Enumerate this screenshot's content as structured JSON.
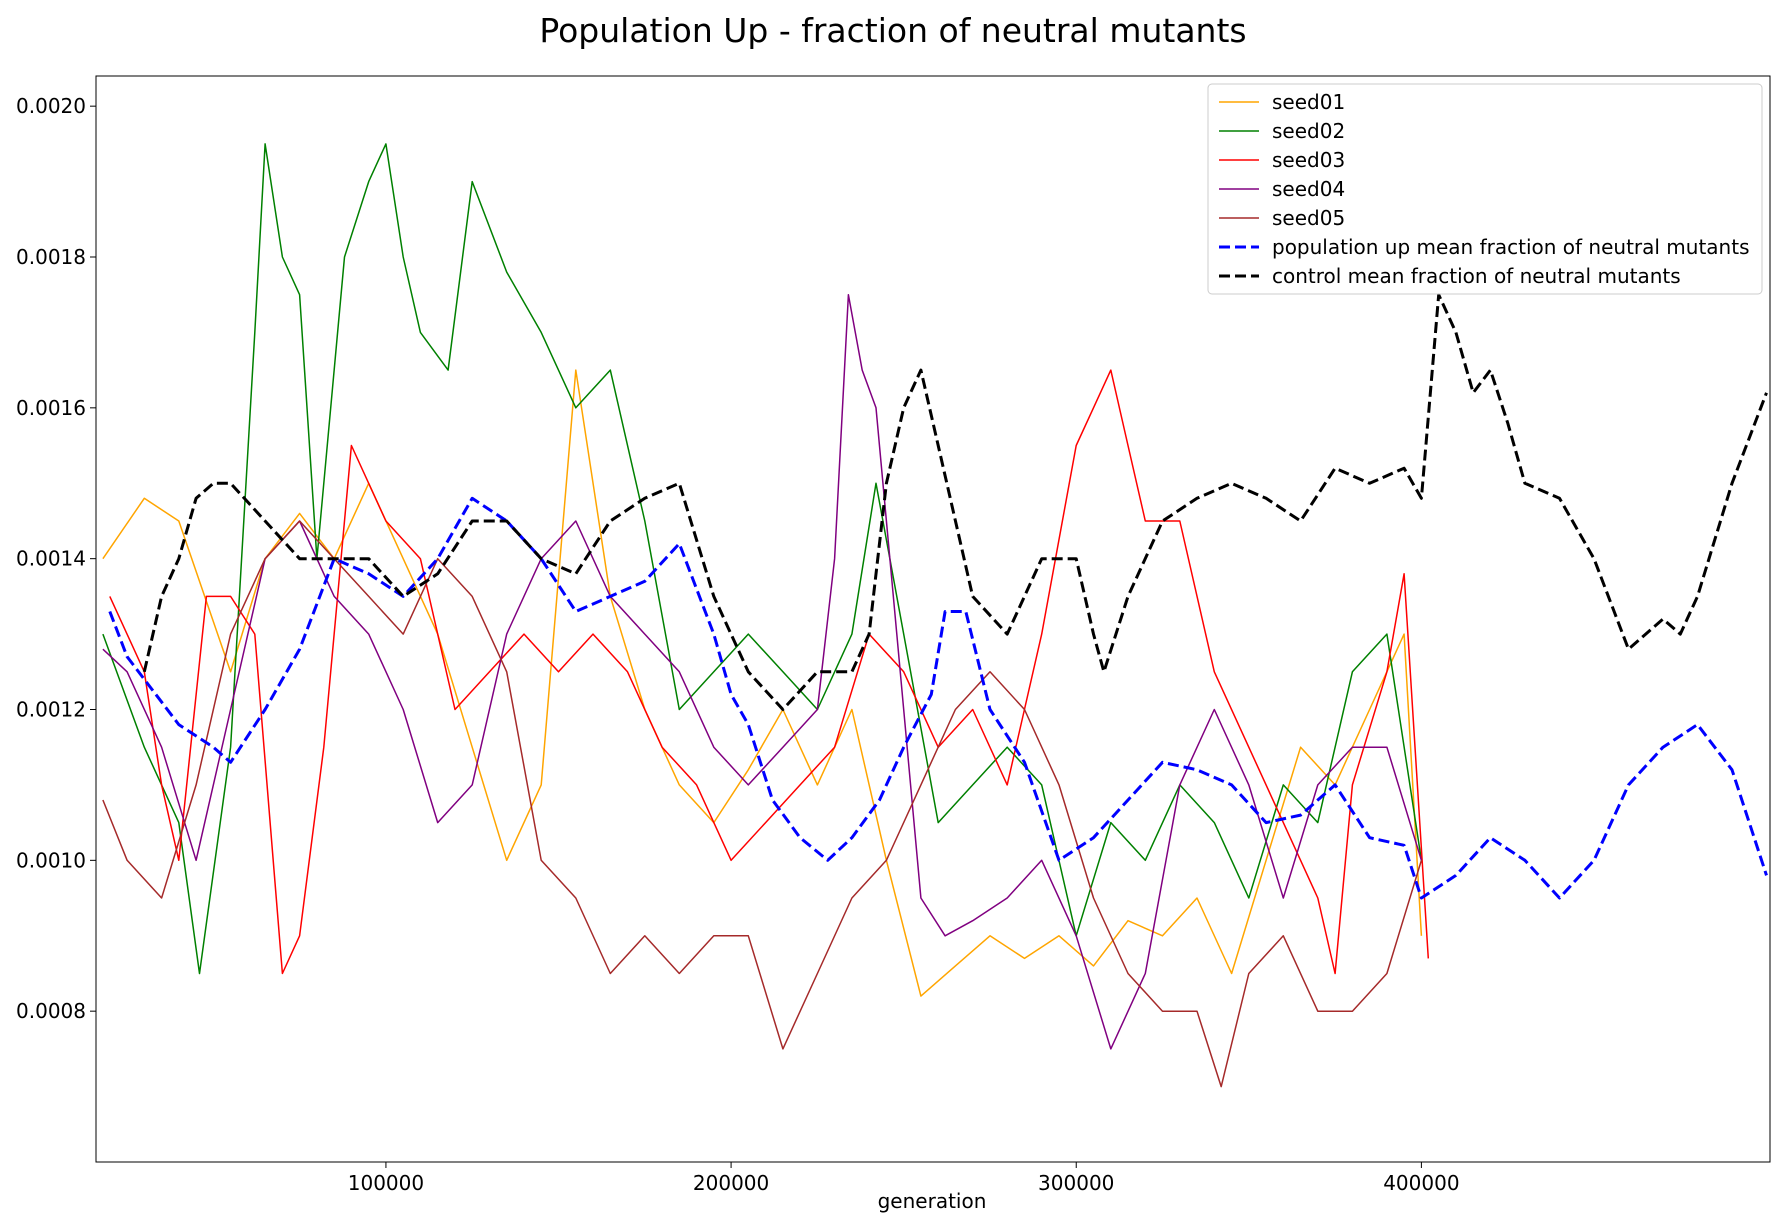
{
  "chart_data": {
    "type": "line",
    "title": "Population Up - fraction of neutral mutants",
    "xlabel": "generation",
    "ylabel": "",
    "xlim": [
      0,
      500000
    ],
    "ylim": [
      0.0006,
      0.00204
    ],
    "xticks": [
      100000,
      200000,
      300000,
      400000
    ],
    "xtick_labels": [
      "100000",
      "200000",
      "300000",
      "400000"
    ],
    "yticks": [
      0.0008,
      0.001,
      0.0012,
      0.0014,
      0.0016,
      0.0018,
      0.002
    ],
    "ytick_labels": [
      "0.0008",
      "0.0010",
      "0.0012",
      "0.0014",
      "0.0016",
      "0.0018",
      "0.0020"
    ],
    "grid": false,
    "legend_position": "top-right",
    "series": [
      {
        "name": "seed01",
        "color": "#ffa500",
        "style": "solid",
        "x": [
          18000,
          30000,
          40000,
          55000,
          65000,
          75000,
          85000,
          95000,
          105000,
          115000,
          125000,
          135000,
          145000,
          155000,
          165000,
          175000,
          185000,
          195000,
          205000,
          215000,
          225000,
          235000,
          245000,
          255000,
          265000,
          275000,
          285000,
          295000,
          305000,
          315000,
          325000,
          335000,
          345000,
          355000,
          365000,
          375000,
          385000,
          395000,
          400000
        ],
        "y": [
          0.0014,
          0.00148,
          0.00145,
          0.00125,
          0.0014,
          0.00146,
          0.0014,
          0.0015,
          0.0014,
          0.0013,
          0.00115,
          0.001,
          0.0011,
          0.00165,
          0.00135,
          0.0012,
          0.0011,
          0.00105,
          0.00112,
          0.0012,
          0.0011,
          0.0012,
          0.001,
          0.00082,
          0.00086,
          0.0009,
          0.00087,
          0.0009,
          0.00086,
          0.00092,
          0.0009,
          0.00095,
          0.00085,
          0.001,
          0.00115,
          0.0011,
          0.0012,
          0.0013,
          0.0009
        ]
      },
      {
        "name": "seed02",
        "color": "#008000",
        "style": "solid",
        "x": [
          18000,
          30000,
          40000,
          46000,
          55000,
          62000,
          65000,
          70000,
          75000,
          80000,
          88000,
          95000,
          100000,
          105000,
          110000,
          118000,
          125000,
          135000,
          145000,
          155000,
          165000,
          175000,
          185000,
          195000,
          205000,
          215000,
          225000,
          235000,
          242000,
          250000,
          260000,
          270000,
          280000,
          290000,
          300000,
          310000,
          320000,
          330000,
          340000,
          350000,
          360000,
          370000,
          380000,
          390000,
          400000
        ],
        "y": [
          0.0013,
          0.00115,
          0.00105,
          0.00085,
          0.00115,
          0.0017,
          0.00195,
          0.0018,
          0.00175,
          0.0014,
          0.0018,
          0.0019,
          0.00195,
          0.0018,
          0.0017,
          0.00165,
          0.0019,
          0.00178,
          0.0017,
          0.0016,
          0.00165,
          0.00145,
          0.0012,
          0.00125,
          0.0013,
          0.00125,
          0.0012,
          0.0013,
          0.0015,
          0.0013,
          0.00105,
          0.0011,
          0.00115,
          0.0011,
          0.0009,
          0.00105,
          0.001,
          0.0011,
          0.00105,
          0.00095,
          0.0011,
          0.00105,
          0.00125,
          0.0013,
          0.001
        ]
      },
      {
        "name": "seed03",
        "color": "#ff0000",
        "style": "solid",
        "x": [
          20000,
          30000,
          35000,
          40000,
          48000,
          55000,
          62000,
          70000,
          75000,
          82000,
          90000,
          100000,
          110000,
          120000,
          130000,
          140000,
          150000,
          160000,
          170000,
          180000,
          190000,
          200000,
          210000,
          220000,
          230000,
          240000,
          250000,
          260000,
          270000,
          280000,
          290000,
          300000,
          305000,
          310000,
          315000,
          320000,
          330000,
          340000,
          350000,
          360000,
          370000,
          375000,
          380000,
          390000,
          395000,
          402000
        ],
        "y": [
          0.00135,
          0.00125,
          0.0011,
          0.001,
          0.00135,
          0.00135,
          0.0013,
          0.00085,
          0.0009,
          0.00115,
          0.00155,
          0.00145,
          0.0014,
          0.0012,
          0.00125,
          0.0013,
          0.00125,
          0.0013,
          0.00125,
          0.00115,
          0.0011,
          0.001,
          0.00105,
          0.0011,
          0.00115,
          0.0013,
          0.00125,
          0.00115,
          0.0012,
          0.0011,
          0.0013,
          0.00155,
          0.0016,
          0.00165,
          0.00155,
          0.00145,
          0.00145,
          0.00125,
          0.00115,
          0.00105,
          0.00095,
          0.00085,
          0.0011,
          0.00125,
          0.00138,
          0.00087
        ]
      },
      {
        "name": "seed04",
        "color": "#800080",
        "style": "solid",
        "x": [
          18000,
          25000,
          35000,
          45000,
          55000,
          65000,
          75000,
          85000,
          95000,
          105000,
          115000,
          125000,
          135000,
          145000,
          155000,
          165000,
          175000,
          185000,
          195000,
          205000,
          215000,
          225000,
          230000,
          234000,
          238000,
          242000,
          248000,
          255000,
          262000,
          270000,
          280000,
          290000,
          300000,
          310000,
          320000,
          330000,
          340000,
          350000,
          360000,
          370000,
          380000,
          390000,
          400000
        ],
        "y": [
          0.00128,
          0.00125,
          0.00115,
          0.001,
          0.0012,
          0.0014,
          0.00145,
          0.00135,
          0.0013,
          0.0012,
          0.00105,
          0.0011,
          0.0013,
          0.0014,
          0.00145,
          0.00135,
          0.0013,
          0.00125,
          0.00115,
          0.0011,
          0.00115,
          0.0012,
          0.0014,
          0.00175,
          0.00165,
          0.0016,
          0.0013,
          0.00095,
          0.0009,
          0.00092,
          0.00095,
          0.001,
          0.0009,
          0.00075,
          0.00085,
          0.0011,
          0.0012,
          0.0011,
          0.00095,
          0.0011,
          0.00115,
          0.00115,
          0.001
        ]
      },
      {
        "name": "seed05",
        "color": "#a52a2a",
        "style": "solid",
        "x": [
          18000,
          25000,
          35000,
          45000,
          55000,
          65000,
          75000,
          85000,
          95000,
          105000,
          115000,
          125000,
          135000,
          145000,
          155000,
          165000,
          175000,
          185000,
          195000,
          205000,
          215000,
          225000,
          235000,
          245000,
          255000,
          265000,
          275000,
          285000,
          295000,
          305000,
          315000,
          325000,
          335000,
          342000,
          350000,
          360000,
          370000,
          380000,
          390000,
          400000
        ],
        "y": [
          0.00108,
          0.001,
          0.00095,
          0.0011,
          0.0013,
          0.0014,
          0.00145,
          0.0014,
          0.00135,
          0.0013,
          0.0014,
          0.00135,
          0.00125,
          0.001,
          0.00095,
          0.00085,
          0.0009,
          0.00085,
          0.0009,
          0.0009,
          0.00075,
          0.00085,
          0.00095,
          0.001,
          0.0011,
          0.0012,
          0.00125,
          0.0012,
          0.0011,
          0.00095,
          0.00085,
          0.0008,
          0.0008,
          0.0007,
          0.00085,
          0.0009,
          0.0008,
          0.0008,
          0.00085,
          0.001
        ]
      },
      {
        "name": "population up mean fraction of neutral mutants",
        "color": "#0000ff",
        "style": "dashed",
        "x": [
          20000,
          25000,
          30000,
          40000,
          50000,
          55000,
          65000,
          75000,
          85000,
          95000,
          105000,
          115000,
          125000,
          135000,
          145000,
          155000,
          165000,
          175000,
          185000,
          195000,
          200000,
          205000,
          212000,
          220000,
          228000,
          235000,
          243000,
          250000,
          258000,
          262000,
          268000,
          275000,
          285000,
          295000,
          305000,
          315000,
          325000,
          335000,
          345000,
          355000,
          365000,
          375000,
          385000,
          395000,
          400000,
          410000,
          420000,
          430000,
          440000,
          450000,
          460000,
          470000,
          480000,
          490000,
          500000
        ],
        "y": [
          0.00133,
          0.00127,
          0.00124,
          0.00118,
          0.00115,
          0.00113,
          0.0012,
          0.00128,
          0.0014,
          0.00138,
          0.00135,
          0.0014,
          0.00148,
          0.00145,
          0.0014,
          0.00133,
          0.00135,
          0.00137,
          0.00142,
          0.0013,
          0.00122,
          0.00118,
          0.00108,
          0.00103,
          0.001,
          0.00103,
          0.00108,
          0.00115,
          0.00122,
          0.00133,
          0.00133,
          0.0012,
          0.00113,
          0.001,
          0.00103,
          0.00108,
          0.00113,
          0.00112,
          0.0011,
          0.00105,
          0.00106,
          0.0011,
          0.00103,
          0.00102,
          0.00095,
          0.00098,
          0.00103,
          0.001,
          0.00095,
          0.001,
          0.0011,
          0.00115,
          0.00118,
          0.00112,
          0.00098
        ]
      },
      {
        "name": "control mean fraction of neutral mutants",
        "color": "#000000",
        "style": "dashed",
        "x": [
          30000,
          35000,
          40000,
          45000,
          50000,
          55000,
          65000,
          75000,
          85000,
          95000,
          105000,
          115000,
          125000,
          135000,
          145000,
          155000,
          165000,
          175000,
          185000,
          195000,
          205000,
          215000,
          225000,
          230000,
          235000,
          240000,
          245000,
          250000,
          255000,
          260000,
          270000,
          280000,
          290000,
          300000,
          305000,
          308000,
          315000,
          325000,
          335000,
          345000,
          355000,
          365000,
          375000,
          385000,
          395000,
          400000,
          405000,
          410000,
          415000,
          420000,
          425000,
          430000,
          440000,
          450000,
          460000,
          465000,
          470000,
          475000,
          480000,
          490000,
          500000
        ],
        "y": [
          0.00125,
          0.00135,
          0.0014,
          0.00148,
          0.0015,
          0.0015,
          0.00145,
          0.0014,
          0.0014,
          0.0014,
          0.00135,
          0.00138,
          0.00145,
          0.00145,
          0.0014,
          0.00138,
          0.00145,
          0.00148,
          0.0015,
          0.00135,
          0.00125,
          0.0012,
          0.00125,
          0.00125,
          0.00125,
          0.0013,
          0.0015,
          0.0016,
          0.00165,
          0.00155,
          0.00135,
          0.0013,
          0.0014,
          0.0014,
          0.0013,
          0.00125,
          0.00135,
          0.00145,
          0.00148,
          0.0015,
          0.00148,
          0.00145,
          0.00152,
          0.0015,
          0.00152,
          0.00148,
          0.00175,
          0.0017,
          0.00162,
          0.00165,
          0.00158,
          0.0015,
          0.00148,
          0.0014,
          0.00128,
          0.0013,
          0.00132,
          0.0013,
          0.00135,
          0.0015,
          0.00162
        ]
      }
    ]
  }
}
